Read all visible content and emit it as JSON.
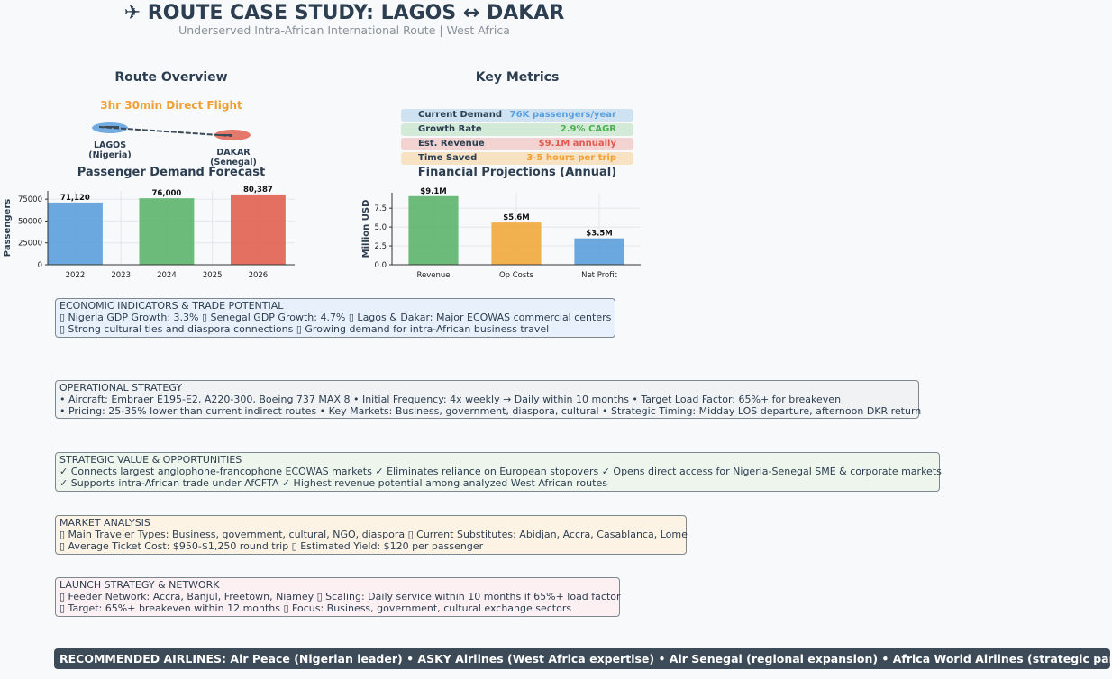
{
  "header": {
    "title": "✈ ROUTE CASE STUDY: LAGOS ↔ DAKAR",
    "subtitle": "Underserved Intra-African International Route | West Africa"
  },
  "route_overview": {
    "title": "Route Overview",
    "flight_time": "3hr 30min Direct Flight",
    "origin_label": "LAGOS",
    "origin_country": "(Nigeria)",
    "destination_label": "DAKAR",
    "destination_country": "(Senegal)"
  },
  "key_metrics": {
    "title": "Key Metrics",
    "items": [
      {
        "label": "Current Demand",
        "value": "76K passengers/year",
        "color": "#5aa0dc",
        "bg": "#cfe2f1"
      },
      {
        "label": "Growth Rate",
        "value": "2.9% CAGR",
        "color": "#4caf50",
        "bg": "#d4ead8"
      },
      {
        "label": "Est. Revenue",
        "value": "$9.1M annually",
        "color": "#e05a4f",
        "bg": "#f3d3d1"
      },
      {
        "label": "Time Saved",
        "value": "3-5 hours per trip",
        "color": "#f0a030",
        "bg": "#f8e2c4"
      }
    ]
  },
  "chart_data": [
    {
      "type": "bar",
      "title": "Passenger Demand Forecast",
      "ylabel": "Passengers",
      "xlabel": "",
      "x": [
        2022,
        2024,
        2026
      ],
      "values": [
        71120,
        76000,
        80387
      ],
      "data_labels": [
        "71,120",
        "76,000",
        "80,387"
      ],
      "colors": [
        "#5b9fdb",
        "#5cb46c",
        "#e06150"
      ],
      "x_ticks": [
        "2022",
        "2023",
        "2024",
        "2025",
        "2026"
      ],
      "y_ticks": [
        0,
        25000,
        50000,
        75000
      ],
      "ylim": [
        0,
        84400
      ],
      "xlim": [
        2021.4,
        2026.8
      ],
      "grid": true
    },
    {
      "type": "bar",
      "title": "Financial Projections (Annual)",
      "ylabel": "Million USD",
      "xlabel": "",
      "categories": [
        "Revenue",
        "Op Costs",
        "Net Profit"
      ],
      "values": [
        9.1,
        5.6,
        3.5
      ],
      "data_labels": [
        "$9.1M",
        "$5.6M",
        "$3.5M"
      ],
      "colors": [
        "#5cb46c",
        "#f0a93c",
        "#5b9fdb"
      ],
      "y_ticks": [
        "0.0",
        "2.5",
        "5.0",
        "7.5"
      ],
      "ylim": [
        0,
        9.55
      ],
      "grid": true
    }
  ],
  "economic": {
    "title": "ECONOMIC INDICATORS & TRADE POTENTIAL",
    "line1": "▯ Nigeria GDP Growth: 3.3%  ▯ Senegal GDP Growth: 4.7%  ▯ Lagos & Dakar: Major ECOWAS commercial centers",
    "line2": "▯ Strong cultural ties and diaspora connections  ▯ Growing demand for intra-African business travel",
    "bg": "#e8f1fb"
  },
  "operational": {
    "title": "OPERATIONAL STRATEGY",
    "line1": "• Aircraft: Embraer E195-E2, A220-300, Boeing 737 MAX 8  • Initial Frequency: 4x weekly → Daily within 10 months  • Target Load Factor: 65%+ for breakeven",
    "line2": "• Pricing: 25-35% lower than current indirect routes  • Key Markets: Business, government, diaspora, cultural  • Strategic Timing: Midday LOS departure, afternoon DKR return",
    "bg": "#f0f2f4"
  },
  "strategic": {
    "title": "STRATEGIC VALUE & OPPORTUNITIES",
    "line1": "✓ Connects largest anglophone-francophone ECOWAS markets  ✓ Eliminates reliance on European stopovers  ✓ Opens direct access for Nigeria-Senegal SME & corporate markets",
    "line2": "✓ Supports intra-African trade under AfCFTA  ✓ Highest revenue potential among analyzed West African routes",
    "bg": "#edf5ec"
  },
  "market": {
    "title": "MARKET ANALYSIS",
    "line1": "▯ Main Traveler Types: Business, government, cultural, NGO, diaspora  ▯ Current Substitutes: Abidjan, Accra, Casablanca, Lome",
    "line2": "▯ Average Ticket Cost: $950-$1,250 round trip  ▯ Estimated Yield: $120 per passenger",
    "bg": "#fdf3e4"
  },
  "launch": {
    "title": "LAUNCH STRATEGY & NETWORK",
    "line1": "▯ Feeder Network: Accra, Banjul, Freetown, Niamey  ▯ Scaling: Daily service within 10 months if 65%+ load factor",
    "line2": "▯ Target: 65%+ breakeven within 12 months  ▯ Focus: Business, government, cultural exchange sectors",
    "bg": "#fcf0f2"
  },
  "banner": {
    "text": "RECOMMENDED AIRLINES: Air Peace (Nigerian leader) • ASKY Airlines (West Africa expertise) • Air Senegal (regional expansion) • Africa World Airlines (strategic partnership)"
  }
}
